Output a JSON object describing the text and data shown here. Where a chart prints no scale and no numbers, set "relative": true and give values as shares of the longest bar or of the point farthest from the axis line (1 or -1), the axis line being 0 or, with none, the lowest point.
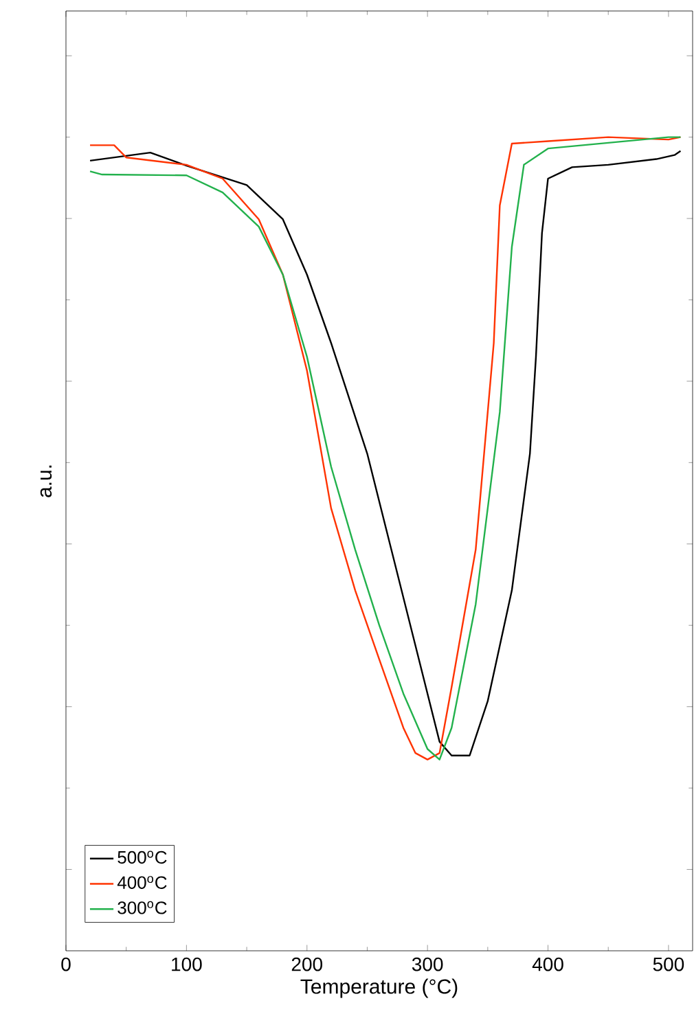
{
  "chart_data": {
    "type": "line",
    "xlabel": "Temperature (°C)",
    "ylabel": "a.u.",
    "relative": true,
    "xlim": [
      0,
      520
    ],
    "xticks": [
      0,
      100,
      200,
      300,
      400,
      500
    ],
    "legend": "bottom left",
    "grid": false,
    "series": [
      {
        "name": "500$^{o}$C",
        "color": "#000000",
        "x": [
          20,
          70,
          100,
          150,
          180,
          200,
          220,
          250,
          270,
          290,
          310,
          320,
          335,
          350,
          370,
          385,
          390,
          395,
          400,
          420,
          450,
          490,
          505,
          510
        ],
        "values": [
          0.971,
          0.981,
          0.965,
          0.941,
          0.899,
          0.831,
          0.747,
          0.611,
          0.493,
          0.375,
          0.257,
          0.24,
          0.24,
          0.307,
          0.443,
          0.611,
          0.73,
          0.882,
          0.949,
          0.963,
          0.966,
          0.973,
          0.978,
          0.983
        ]
      },
      {
        "name": "400$^{o}$C",
        "color": "#ff3300",
        "x": [
          20,
          40,
          50,
          100,
          130,
          160,
          180,
          200,
          220,
          240,
          260,
          280,
          290,
          300,
          310,
          320,
          340,
          355,
          360,
          370,
          400,
          450,
          500,
          510
        ],
        "values": [
          0.99,
          0.99,
          0.975,
          0.966,
          0.949,
          0.899,
          0.831,
          0.713,
          0.544,
          0.443,
          0.358,
          0.274,
          0.243,
          0.235,
          0.243,
          0.324,
          0.493,
          0.747,
          0.916,
          0.992,
          0.995,
          1.0,
          0.997,
          1.0
        ]
      },
      {
        "name": "300$^{o}$C",
        "color": "#22b14c",
        "x": [
          20,
          30,
          100,
          130,
          160,
          180,
          200,
          220,
          240,
          260,
          280,
          300,
          310,
          320,
          340,
          360,
          370,
          380,
          400,
          450,
          500,
          510
        ],
        "values": [
          0.958,
          0.954,
          0.953,
          0.932,
          0.89,
          0.831,
          0.73,
          0.595,
          0.493,
          0.4,
          0.316,
          0.248,
          0.235,
          0.274,
          0.426,
          0.662,
          0.865,
          0.966,
          0.986,
          0.993,
          1.0,
          1.0
        ]
      }
    ]
  }
}
